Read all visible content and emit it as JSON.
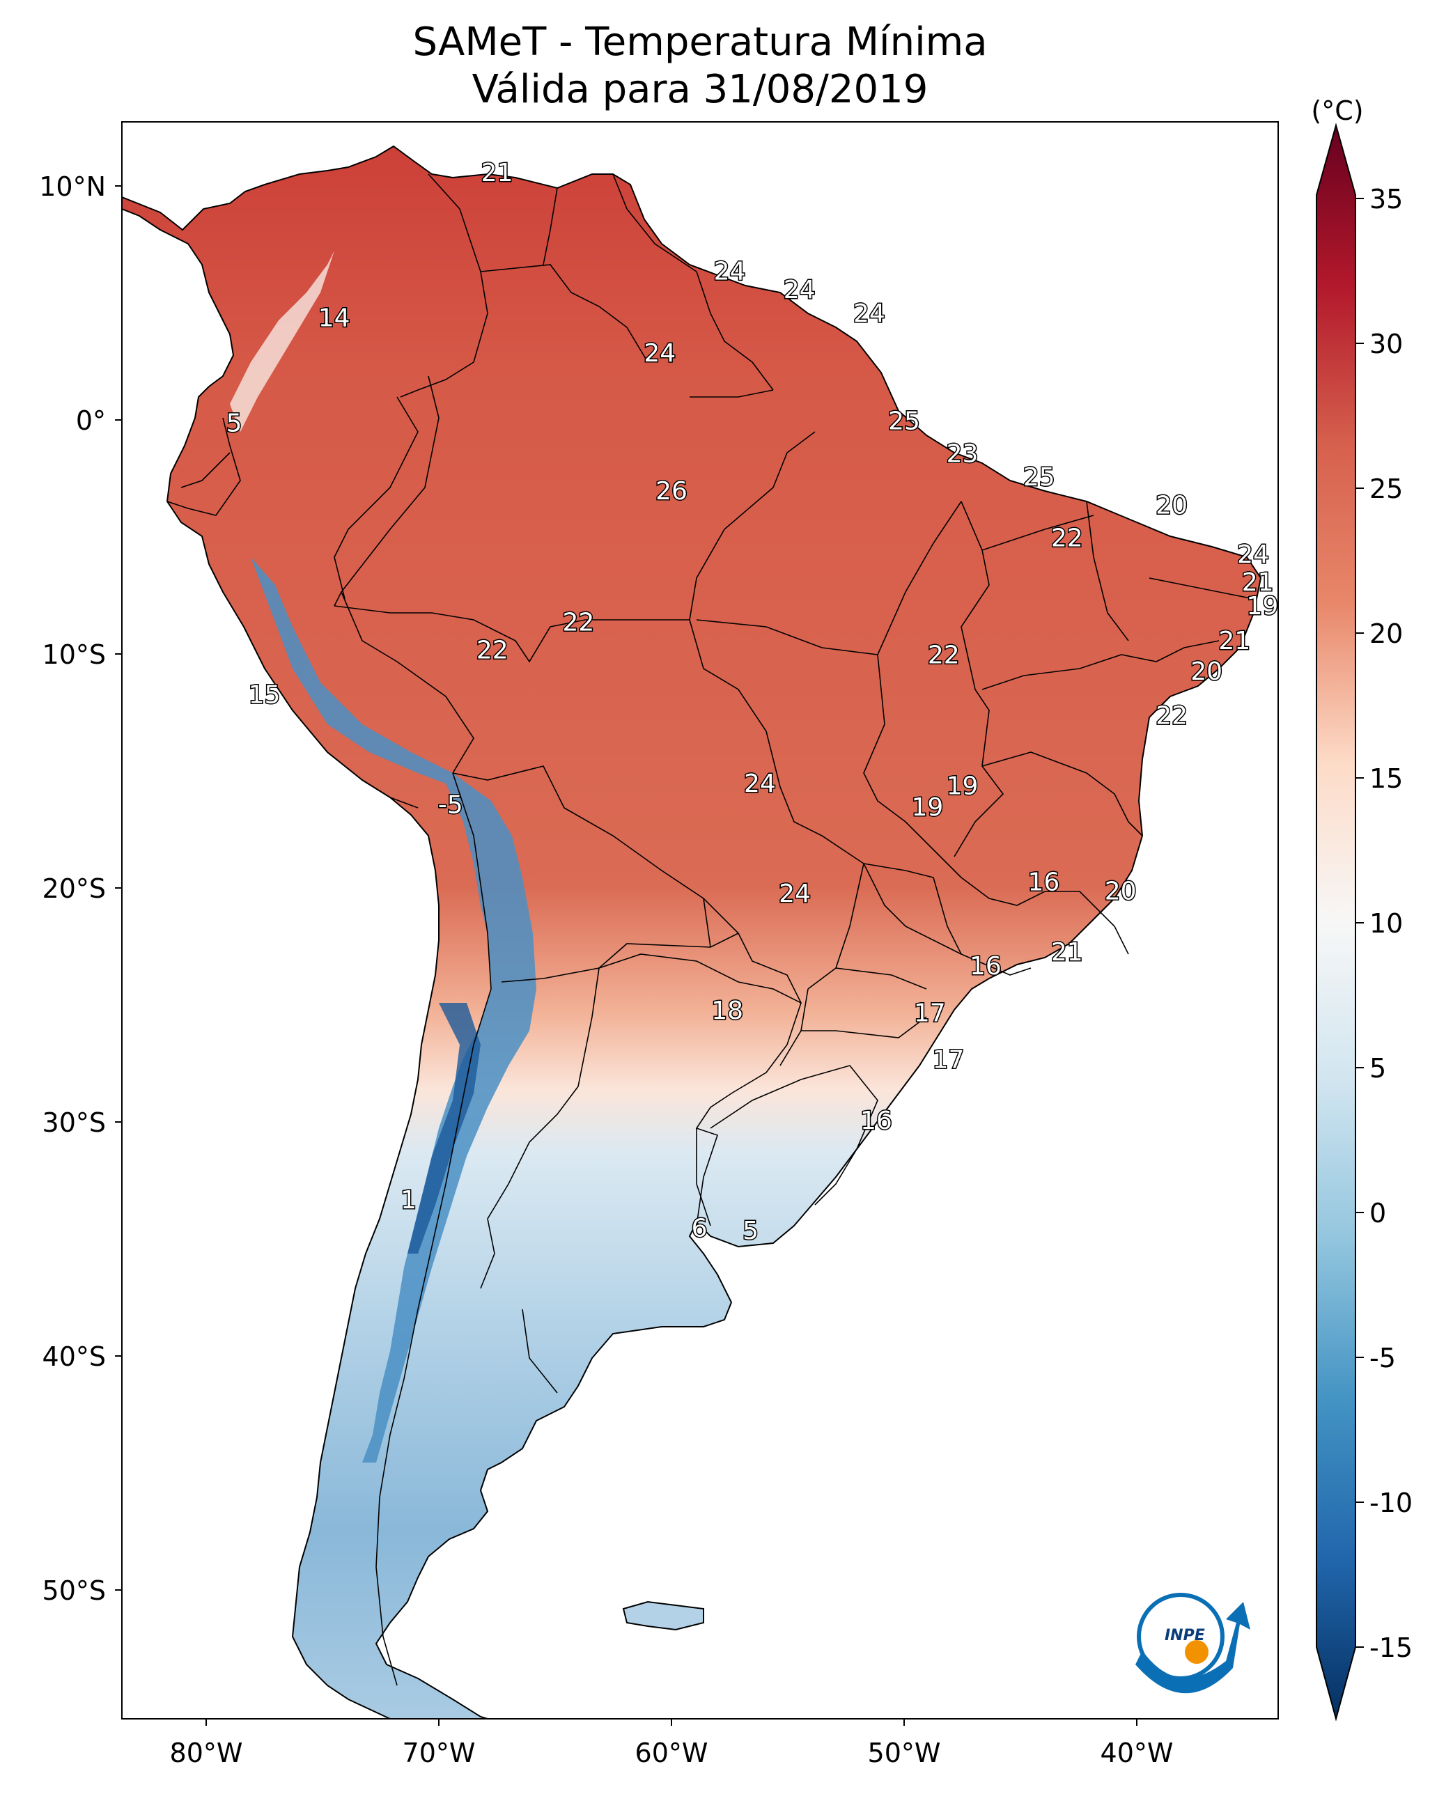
{
  "title": {
    "line1": "SAMeT - Temperatura Mínima",
    "line2": "Válida para 31/08/2019"
  },
  "colorbar": {
    "unit": "(°C)",
    "ticks": [
      "35",
      "30",
      "25",
      "20",
      "15",
      "10",
      "5",
      "0",
      "-5",
      "-10",
      "-15"
    ],
    "min": -15,
    "max": 35,
    "colormap": "RdBu_r"
  },
  "axes": {
    "lat_ticks": [
      "10°N",
      "0°",
      "10°S",
      "20°S",
      "30°S",
      "40°S",
      "50°S"
    ],
    "lon_ticks": [
      "80°W",
      "70°W",
      "60°W",
      "50°W",
      "40°W"
    ]
  },
  "station_labels": [
    {
      "v": "21",
      "lon": -67.5,
      "lat": 10.5
    },
    {
      "v": "14",
      "lon": -74.5,
      "lat": 4.3
    },
    {
      "v": "5",
      "lon": -78.8,
      "lat": -0.2
    },
    {
      "v": "24",
      "lon": -57.5,
      "lat": 6.3
    },
    {
      "v": "24",
      "lon": -54.5,
      "lat": 5.5
    },
    {
      "v": "24",
      "lon": -51.5,
      "lat": 4.5
    },
    {
      "v": "24",
      "lon": -60.5,
      "lat": 2.8
    },
    {
      "v": "25",
      "lon": -50.0,
      "lat": -0.1
    },
    {
      "v": "26",
      "lon": -60.0,
      "lat": -3.1
    },
    {
      "v": "23",
      "lon": -47.5,
      "lat": -1.5
    },
    {
      "v": "25",
      "lon": -44.2,
      "lat": -2.5
    },
    {
      "v": "20",
      "lon": -38.5,
      "lat": -3.7
    },
    {
      "v": "22",
      "lon": -43.0,
      "lat": -5.1
    },
    {
      "v": "24",
      "lon": -35.0,
      "lat": -5.8
    },
    {
      "v": "21",
      "lon": -34.8,
      "lat": -7.0
    },
    {
      "v": "19",
      "lon": -34.6,
      "lat": -8.0
    },
    {
      "v": "22",
      "lon": -64.0,
      "lat": -8.7
    },
    {
      "v": "22",
      "lon": -67.7,
      "lat": -9.9
    },
    {
      "v": "22",
      "lon": -48.3,
      "lat": -10.1
    },
    {
      "v": "21",
      "lon": -35.8,
      "lat": -9.5
    },
    {
      "v": "20",
      "lon": -37.0,
      "lat": -10.8
    },
    {
      "v": "22",
      "lon": -38.5,
      "lat": -12.7
    },
    {
      "v": "15",
      "lon": -77.5,
      "lat": -11.8
    },
    {
      "v": "24",
      "lon": -56.2,
      "lat": -15.6
    },
    {
      "v": "19",
      "lon": -47.5,
      "lat": -15.7
    },
    {
      "v": "19",
      "lon": -49.0,
      "lat": -16.6
    },
    {
      "v": "-5",
      "lon": -69.5,
      "lat": -16.5
    },
    {
      "v": "16",
      "lon": -44.0,
      "lat": -19.8
    },
    {
      "v": "20",
      "lon": -40.7,
      "lat": -20.2
    },
    {
      "v": "24",
      "lon": -54.7,
      "lat": -20.3
    },
    {
      "v": "21",
      "lon": -43.0,
      "lat": -22.8
    },
    {
      "v": "16",
      "lon": -46.5,
      "lat": -23.4
    },
    {
      "v": "18",
      "lon": -57.6,
      "lat": -25.3
    },
    {
      "v": "17",
      "lon": -48.9,
      "lat": -25.4
    },
    {
      "v": "17",
      "lon": -48.1,
      "lat": -27.4
    },
    {
      "v": "16",
      "lon": -51.2,
      "lat": -30.0
    },
    {
      "v": "1",
      "lon": -71.3,
      "lat": -33.4
    },
    {
      "v": "6",
      "lon": -58.8,
      "lat": -34.6
    },
    {
      "v": "5",
      "lon": -56.6,
      "lat": -34.7
    }
  ],
  "logo": {
    "text": "INPE"
  }
}
